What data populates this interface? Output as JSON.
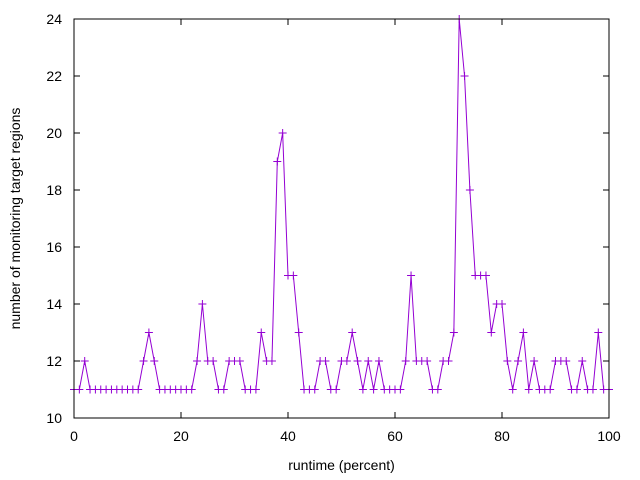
{
  "chart_data": {
    "type": "line",
    "xlabel": "runtime (percent)",
    "ylabel": "number of monitoring target regions",
    "xlim": [
      0,
      100
    ],
    "ylim": [
      10,
      24
    ],
    "xticks": [
      0,
      20,
      40,
      60,
      80,
      100
    ],
    "yticks": [
      10,
      12,
      14,
      16,
      18,
      20,
      22,
      24
    ],
    "grid": false,
    "legend": "none",
    "marker": "plus",
    "line_color": "#9400d3",
    "series": [
      {
        "x": [
          0,
          1,
          2,
          3,
          4,
          5,
          6,
          7,
          8,
          9,
          10,
          11,
          12,
          13,
          14,
          15,
          16,
          17,
          18,
          19,
          20,
          21,
          22,
          23,
          24,
          25,
          26,
          27,
          28,
          29,
          30,
          31,
          32,
          33,
          34,
          35,
          36,
          37,
          38,
          39,
          40,
          41,
          42,
          43,
          44,
          45,
          46,
          47,
          48,
          49,
          50,
          51,
          52,
          53,
          54,
          55,
          56,
          57,
          58,
          59,
          60,
          61,
          62,
          63,
          64,
          65,
          66,
          67,
          68,
          69,
          70,
          71,
          72,
          73,
          74,
          75,
          76,
          77,
          78,
          79,
          80,
          81,
          82,
          83,
          84,
          85,
          86,
          87,
          88,
          89,
          90,
          91,
          92,
          93,
          94,
          95,
          96,
          97,
          98,
          99,
          100
        ],
        "y": [
          11,
          11,
          12,
          11,
          11,
          11,
          11,
          11,
          11,
          11,
          11,
          11,
          11,
          12,
          13,
          12,
          11,
          11,
          11,
          11,
          11,
          11,
          11,
          12,
          14,
          12,
          12,
          11,
          11,
          12,
          12,
          12,
          11,
          11,
          11,
          13,
          12,
          12,
          19,
          20,
          15,
          15,
          13,
          11,
          11,
          11,
          12,
          12,
          11,
          11,
          12,
          12,
          13,
          12,
          11,
          12,
          11,
          12,
          11,
          11,
          11,
          11,
          12,
          15,
          12,
          12,
          12,
          11,
          11,
          12,
          12,
          13,
          24,
          22,
          18,
          15,
          15,
          15,
          13,
          14,
          14,
          12,
          11,
          12,
          13,
          11,
          12,
          11,
          11,
          11,
          12,
          12,
          12,
          11,
          11,
          12,
          11,
          11,
          13,
          11,
          11
        ]
      }
    ]
  }
}
